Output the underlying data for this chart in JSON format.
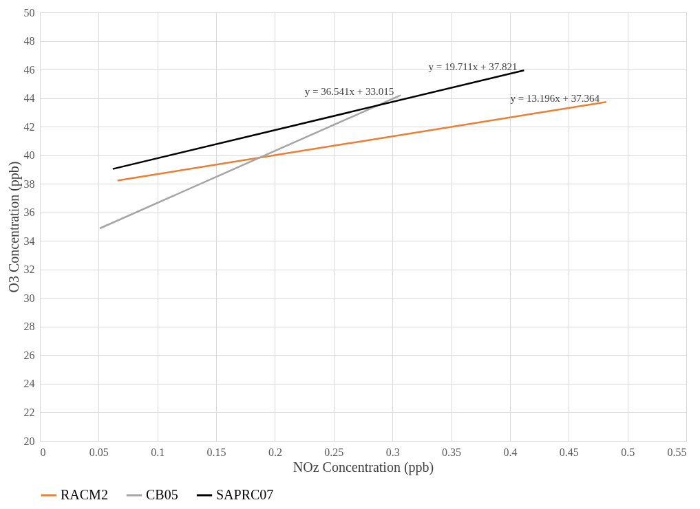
{
  "chart_data": {
    "type": "line",
    "xlabel": "NOz Concentration (ppb)",
    "ylabel": "O3 Concentration (ppb)",
    "xlim": [
      0,
      0.55
    ],
    "xticks": [
      0,
      0.05,
      0.1,
      0.15,
      0.2,
      0.25,
      0.3,
      0.35,
      0.4,
      0.45,
      0.5,
      0.55
    ],
    "ylim": [
      20,
      50
    ],
    "yticks": [
      20,
      22,
      24,
      26,
      28,
      30,
      32,
      34,
      36,
      38,
      40,
      42,
      44,
      46,
      48,
      50
    ],
    "grid": true,
    "legend": "bottom",
    "marker": "none",
    "line_style": "solid",
    "series": [
      {
        "name": "RACM2",
        "color": "#ed7d31",
        "x": [
          0.066,
          0.482
        ],
        "values": [
          38.23,
          43.73
        ]
      },
      {
        "name": "CB05",
        "color": "#a5a5a5",
        "x": [
          0.051,
          0.307
        ],
        "values": [
          34.88,
          44.2
        ]
      },
      {
        "name": "SAPRC07",
        "color": "#000000",
        "x": [
          0.062,
          0.412
        ],
        "values": [
          39.04,
          45.94
        ]
      }
    ],
    "annotations": [
      "y = 36.541x + 33.015",
      "y = 19.711x + 37.821",
      "y = 13.196x + 37.364"
    ]
  }
}
